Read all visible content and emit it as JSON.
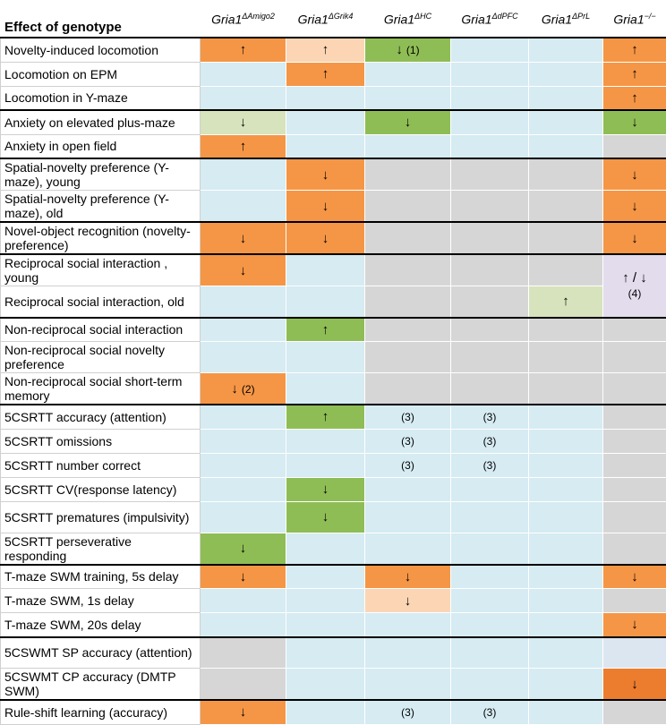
{
  "header": {
    "effect_label": "Effect of genotype",
    "genotypes": [
      {
        "base": "Gria1",
        "sup": "ΔAmigo2"
      },
      {
        "base": "Gria1",
        "sup": "ΔGrik4"
      },
      {
        "base": "Gria1",
        "sup": "ΔHC"
      },
      {
        "base": "Gria1",
        "sup": "ΔdPFC"
      },
      {
        "base": "Gria1",
        "sup": "ΔPrL"
      },
      {
        "base": "Gria1",
        "sup": "−/−"
      }
    ]
  },
  "colors": {
    "O": "#f59646",
    "P": "#fbd5b4",
    "G": "#8fbd55",
    "L": "#d7e3bc",
    "B": "#d6ebf2",
    "X": "#d6d6d6",
    "V": "#e2dced",
    "D": "#ec7d2f",
    "Q": "#dce6f0"
  },
  "rows": [
    {
      "label": "Novelty-induced locomotion",
      "h": 27,
      "cells": [
        [
          "O",
          "↑",
          ""
        ],
        [
          "P",
          "↑",
          ""
        ],
        [
          "G",
          "↓",
          "(1)"
        ],
        [
          "B",
          "",
          ""
        ],
        [
          "B",
          "",
          ""
        ],
        [
          "O",
          "↑",
          ""
        ]
      ]
    },
    {
      "label": "Locomotion on EPM",
      "h": 27,
      "cells": [
        [
          "B",
          "",
          ""
        ],
        [
          "O",
          "↑",
          ""
        ],
        [
          "B",
          "",
          ""
        ],
        [
          "B",
          "",
          ""
        ],
        [
          "B",
          "",
          ""
        ],
        [
          "O",
          "↑",
          ""
        ]
      ]
    },
    {
      "label": "Locomotion in Y-maze",
      "h": 27,
      "end": true,
      "cells": [
        [
          "B",
          "",
          ""
        ],
        [
          "B",
          "",
          ""
        ],
        [
          "B",
          "",
          ""
        ],
        [
          "B",
          "",
          ""
        ],
        [
          "B",
          "",
          ""
        ],
        [
          "O",
          "↑",
          ""
        ]
      ]
    },
    {
      "label": "Anxiety on elevated plus-maze",
      "h": 27,
      "cells": [
        [
          "L",
          "↓",
          ""
        ],
        [
          "B",
          "",
          ""
        ],
        [
          "G",
          "↓",
          ""
        ],
        [
          "B",
          "",
          ""
        ],
        [
          "B",
          "",
          ""
        ],
        [
          "G",
          "↓",
          ""
        ]
      ]
    },
    {
      "label": "Anxiety in open field",
      "h": 27,
      "end": true,
      "cells": [
        [
          "O",
          "↑",
          ""
        ],
        [
          "B",
          "",
          ""
        ],
        [
          "B",
          "",
          ""
        ],
        [
          "B",
          "",
          ""
        ],
        [
          "B",
          "",
          ""
        ],
        [
          "X",
          "",
          ""
        ]
      ]
    },
    {
      "label": "Spatial-novelty preference (Y-maze), young",
      "h": 35,
      "cells": [
        [
          "B",
          "",
          ""
        ],
        [
          "O",
          "↓",
          ""
        ],
        [
          "X",
          "",
          ""
        ],
        [
          "X",
          "",
          ""
        ],
        [
          "X",
          "",
          ""
        ],
        [
          "O",
          "↓",
          ""
        ]
      ]
    },
    {
      "label": "Spatial-novelty preference (Y-maze), old",
      "h": 35,
      "end": true,
      "cells": [
        [
          "B",
          "",
          ""
        ],
        [
          "O",
          "↓",
          ""
        ],
        [
          "X",
          "",
          ""
        ],
        [
          "X",
          "",
          ""
        ],
        [
          "X",
          "",
          ""
        ],
        [
          "O",
          "↓",
          ""
        ]
      ]
    },
    {
      "label": "Novel-object recognition (novelty-preference)",
      "h": 35,
      "end": true,
      "cells": [
        [
          "O",
          "↓",
          ""
        ],
        [
          "O",
          "↓",
          ""
        ],
        [
          "X",
          "",
          ""
        ],
        [
          "X",
          "",
          ""
        ],
        [
          "X",
          "",
          ""
        ],
        [
          "O",
          "↓",
          ""
        ]
      ]
    },
    {
      "label": "Reciprocal social interaction , young",
      "h": 35,
      "cells": [
        [
          "O",
          "↓",
          ""
        ],
        [
          "B",
          "",
          ""
        ],
        [
          "X",
          "",
          ""
        ],
        [
          "X",
          "",
          ""
        ],
        [
          "X",
          "",
          ""
        ],
        [
          "V",
          "↑ / ↓",
          "(4)"
        ]
      ]
    },
    {
      "label": "Reciprocal social interaction, old",
      "h": 35,
      "end": true,
      "cells": [
        [
          "B",
          "",
          ""
        ],
        [
          "B",
          "",
          ""
        ],
        [
          "X",
          "",
          ""
        ],
        [
          "X",
          "",
          ""
        ],
        [
          "L",
          "↑",
          ""
        ],
        [
          "SPAN",
          "",
          ""
        ]
      ]
    },
    {
      "label": "Non-reciprocal social interaction",
      "h": 27,
      "cells": [
        [
          "B",
          "",
          ""
        ],
        [
          "G",
          "↑",
          ""
        ],
        [
          "X",
          "",
          ""
        ],
        [
          "X",
          "",
          ""
        ],
        [
          "X",
          "",
          ""
        ],
        [
          "X",
          "",
          ""
        ]
      ]
    },
    {
      "label": "Non-reciprocal social novelty preference",
      "h": 35,
      "cells": [
        [
          "B",
          "",
          ""
        ],
        [
          "B",
          "",
          ""
        ],
        [
          "X",
          "",
          ""
        ],
        [
          "X",
          "",
          ""
        ],
        [
          "X",
          "",
          ""
        ],
        [
          "X",
          "",
          ""
        ]
      ]
    },
    {
      "label": "Non-reciprocal social short-term memory",
      "h": 35,
      "end": true,
      "cells": [
        [
          "O",
          "↓",
          "(2)"
        ],
        [
          "B",
          "",
          ""
        ],
        [
          "X",
          "",
          ""
        ],
        [
          "X",
          "",
          ""
        ],
        [
          "X",
          "",
          ""
        ],
        [
          "X",
          "",
          ""
        ]
      ]
    },
    {
      "label": "5CSRTT accuracy (attention)",
      "h": 27,
      "cells": [
        [
          "B",
          "",
          ""
        ],
        [
          "G",
          "↑",
          ""
        ],
        [
          "B",
          "",
          "(3)"
        ],
        [
          "B",
          "",
          "(3)"
        ],
        [
          "B",
          "",
          ""
        ],
        [
          "X",
          "",
          ""
        ]
      ]
    },
    {
      "label": "5CSRTT omissions",
      "h": 27,
      "cells": [
        [
          "B",
          "",
          ""
        ],
        [
          "B",
          "",
          ""
        ],
        [
          "B",
          "",
          "(3)"
        ],
        [
          "B",
          "",
          "(3)"
        ],
        [
          "B",
          "",
          ""
        ],
        [
          "X",
          "",
          ""
        ]
      ]
    },
    {
      "label": "5CSRTT number correct",
      "h": 27,
      "cells": [
        [
          "B",
          "",
          ""
        ],
        [
          "B",
          "",
          ""
        ],
        [
          "B",
          "",
          "(3)"
        ],
        [
          "B",
          "",
          "(3)"
        ],
        [
          "B",
          "",
          ""
        ],
        [
          "X",
          "",
          ""
        ]
      ]
    },
    {
      "label": "5CSRTT CV(response latency)",
      "h": 27,
      "cells": [
        [
          "B",
          "",
          ""
        ],
        [
          "G",
          "↓",
          ""
        ],
        [
          "B",
          "",
          ""
        ],
        [
          "B",
          "",
          ""
        ],
        [
          "B",
          "",
          ""
        ],
        [
          "X",
          "",
          ""
        ]
      ]
    },
    {
      "label": "5CSRTT prematures (impulsivity)",
      "h": 35,
      "cells": [
        [
          "B",
          "",
          ""
        ],
        [
          "G",
          "↓",
          ""
        ],
        [
          "B",
          "",
          ""
        ],
        [
          "B",
          "",
          ""
        ],
        [
          "B",
          "",
          ""
        ],
        [
          "X",
          "",
          ""
        ]
      ]
    },
    {
      "label": "5CSRTT perseverative responding",
      "h": 35,
      "end": true,
      "cells": [
        [
          "G",
          "↓",
          ""
        ],
        [
          "B",
          "",
          ""
        ],
        [
          "B",
          "",
          ""
        ],
        [
          "B",
          "",
          ""
        ],
        [
          "B",
          "",
          ""
        ],
        [
          "X",
          "",
          ""
        ]
      ]
    },
    {
      "label": "T-maze SWM training, 5s delay",
      "h": 27,
      "cells": [
        [
          "O",
          "↓",
          ""
        ],
        [
          "B",
          "",
          ""
        ],
        [
          "O",
          "↓",
          ""
        ],
        [
          "B",
          "",
          ""
        ],
        [
          "B",
          "",
          ""
        ],
        [
          "O",
          "↓",
          ""
        ]
      ]
    },
    {
      "label": "T-maze SWM, 1s delay",
      "h": 27,
      "cells": [
        [
          "B",
          "",
          ""
        ],
        [
          "B",
          "",
          ""
        ],
        [
          "P",
          "↓",
          ""
        ],
        [
          "B",
          "",
          ""
        ],
        [
          "B",
          "",
          ""
        ],
        [
          "X",
          "",
          ""
        ]
      ]
    },
    {
      "label": "T-maze SWM, 20s delay",
      "h": 27,
      "end": true,
      "cells": [
        [
          "B",
          "",
          ""
        ],
        [
          "B",
          "",
          ""
        ],
        [
          "B",
          "",
          ""
        ],
        [
          "B",
          "",
          ""
        ],
        [
          "B",
          "",
          ""
        ],
        [
          "O",
          "↓",
          ""
        ]
      ]
    },
    {
      "label": "5CSWMT SP accuracy (attention)",
      "h": 35,
      "cells": [
        [
          "X",
          "",
          ""
        ],
        [
          "B",
          "",
          ""
        ],
        [
          "B",
          "",
          ""
        ],
        [
          "B",
          "",
          ""
        ],
        [
          "B",
          "",
          ""
        ],
        [
          "Q",
          "",
          ""
        ]
      ]
    },
    {
      "label": "5CSWMT CP accuracy (DMTP SWM)",
      "h": 35,
      "end": true,
      "cells": [
        [
          "X",
          "",
          ""
        ],
        [
          "B",
          "",
          ""
        ],
        [
          "B",
          "",
          ""
        ],
        [
          "B",
          "",
          ""
        ],
        [
          "B",
          "",
          ""
        ],
        [
          "D",
          "↓",
          ""
        ]
      ]
    },
    {
      "label": "Rule-shift learning (accuracy)",
      "h": 27,
      "cells": [
        [
          "O",
          "↓",
          ""
        ],
        [
          "B",
          "",
          ""
        ],
        [
          "B",
          "",
          "(3)"
        ],
        [
          "B",
          "",
          "(3)"
        ],
        [
          "B",
          "",
          ""
        ],
        [
          "X",
          "",
          ""
        ]
      ]
    }
  ]
}
